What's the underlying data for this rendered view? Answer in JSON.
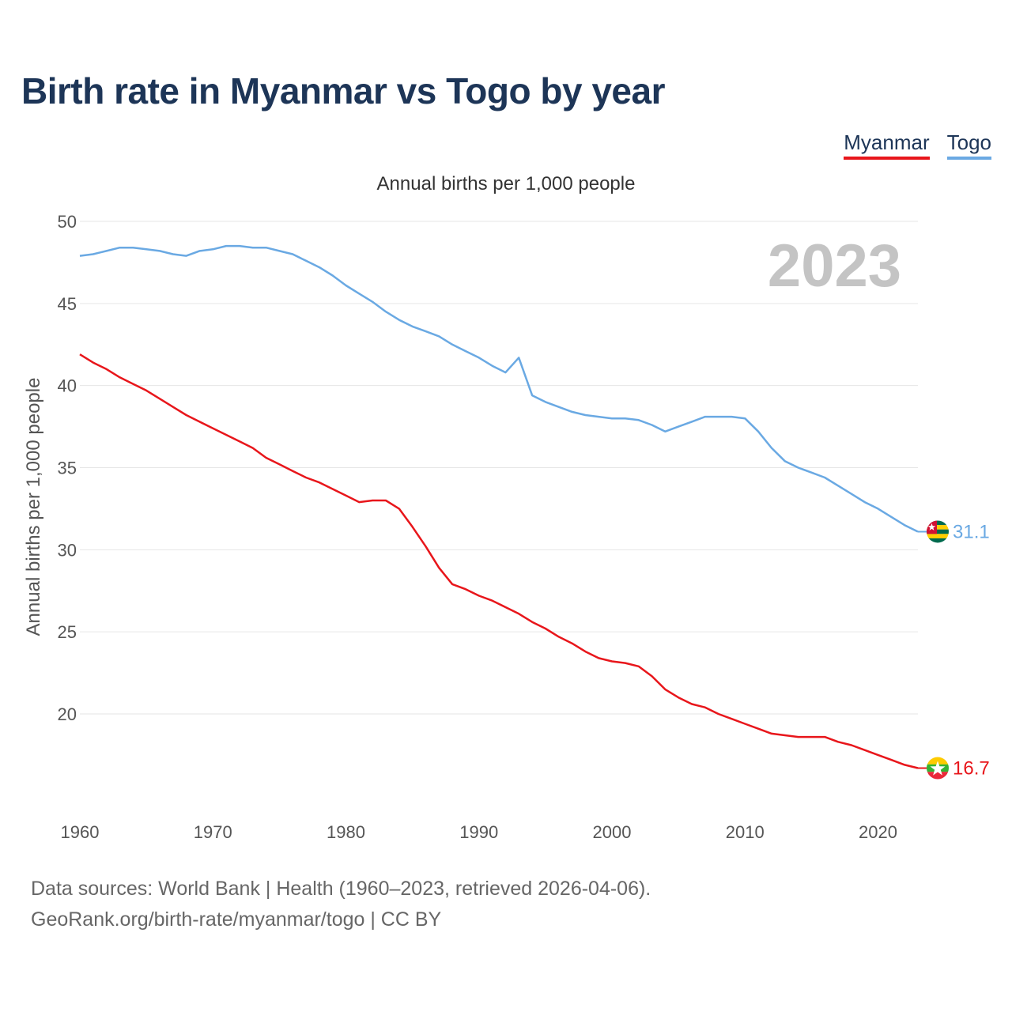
{
  "chart_data": {
    "type": "line",
    "title": "Birth rate in Myanmar vs Togo by year",
    "subtitle": "Annual births per 1,000 people",
    "ylabel": "Annual births per 1,000 people",
    "xlabel": "",
    "year_watermark": "2023",
    "xlim": [
      1960,
      2023
    ],
    "ylim": [
      15,
      50
    ],
    "x_ticks": [
      1960,
      1970,
      1980,
      1990,
      2000,
      2010,
      2020
    ],
    "y_ticks": [
      20,
      25,
      30,
      35,
      40,
      45,
      50
    ],
    "legend_position": "top-right",
    "x": [
      1960,
      1961,
      1962,
      1963,
      1964,
      1965,
      1966,
      1967,
      1968,
      1969,
      1970,
      1971,
      1972,
      1973,
      1974,
      1975,
      1976,
      1977,
      1978,
      1979,
      1980,
      1981,
      1982,
      1983,
      1984,
      1985,
      1986,
      1987,
      1988,
      1989,
      1990,
      1991,
      1992,
      1993,
      1994,
      1995,
      1996,
      1997,
      1998,
      1999,
      2000,
      2001,
      2002,
      2003,
      2004,
      2005,
      2006,
      2007,
      2008,
      2009,
      2010,
      2011,
      2012,
      2013,
      2014,
      2015,
      2016,
      2017,
      2018,
      2019,
      2020,
      2021,
      2022,
      2023
    ],
    "series": [
      {
        "name": "Myanmar",
        "color": "#e8161b",
        "end_label": "16.7",
        "flag_icon": "myanmar-flag-icon",
        "values": [
          41.9,
          41.4,
          41.0,
          40.5,
          40.1,
          39.7,
          39.2,
          38.7,
          38.2,
          37.8,
          37.4,
          37.0,
          36.6,
          36.2,
          35.6,
          35.2,
          34.8,
          34.4,
          34.1,
          33.7,
          33.3,
          32.9,
          33.0,
          33.0,
          32.5,
          31.4,
          30.2,
          28.9,
          27.9,
          27.6,
          27.2,
          26.9,
          26.5,
          26.1,
          25.6,
          25.2,
          24.7,
          24.3,
          23.8,
          23.4,
          23.2,
          23.1,
          22.9,
          22.3,
          21.5,
          21.0,
          20.6,
          20.4,
          20.0,
          19.7,
          19.4,
          19.1,
          18.8,
          18.7,
          18.6,
          18.6,
          18.6,
          18.3,
          18.1,
          17.8,
          17.5,
          17.2,
          16.9,
          16.7
        ]
      },
      {
        "name": "Togo",
        "color": "#6aa9e3",
        "end_label": "31.1",
        "flag_icon": "togo-flag-icon",
        "values": [
          47.9,
          48.0,
          48.2,
          48.4,
          48.4,
          48.3,
          48.2,
          48.0,
          47.9,
          48.2,
          48.3,
          48.5,
          48.5,
          48.4,
          48.4,
          48.2,
          48.0,
          47.6,
          47.2,
          46.7,
          46.1,
          45.6,
          45.1,
          44.5,
          44.0,
          43.6,
          43.3,
          43.0,
          42.5,
          42.1,
          41.7,
          41.2,
          40.8,
          41.7,
          39.4,
          39.0,
          38.7,
          38.4,
          38.2,
          38.1,
          38.0,
          38.0,
          37.9,
          37.6,
          37.2,
          37.5,
          37.8,
          38.1,
          38.1,
          38.1,
          38.0,
          37.2,
          36.2,
          35.4,
          35.0,
          34.7,
          34.4,
          33.9,
          33.4,
          32.9,
          32.5,
          32.0,
          31.5,
          31.1
        ]
      }
    ]
  },
  "footer": {
    "line1": "Data sources: World Bank | Health (1960–2023, retrieved 2026-04-06).",
    "line2": "GeoRank.org/birth-rate/myanmar/togo | CC BY"
  }
}
